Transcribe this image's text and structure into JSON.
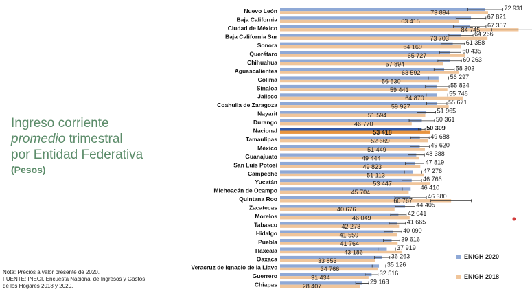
{
  "title": {
    "line1": "Ingreso corriente",
    "line2": "promedio",
    "line2_rest": " trimestral",
    "line3": "por Entidad Federativa",
    "units": "(Pesos)"
  },
  "note": {
    "line1": "Nota: Precios a valor presente de 2020.",
    "line2": "FUENTE: INEGI. Encuesta Nacional de Ingresos y Gastos",
    "line3": "de los Hogares 2018 y 2020."
  },
  "colors": {
    "bar_2020": "#8fa9d6",
    "bar_2018": "#f0c59a",
    "bar_nacional_2020": "#2e56a8",
    "bar_nacional_2018": "#e8953f",
    "title": "#5c8c6a",
    "marker": "#d23a3a"
  },
  "chart_data": {
    "type": "bar",
    "orientation": "horizontal",
    "categories": [
      "Nuevo León",
      "Baja California",
      "Ciudad de México",
      "Baja California Sur",
      "Sonora",
      "Querétaro",
      "Chihuahua",
      "Aguascalientes",
      "Colima",
      "Sinaloa",
      "Jalisco",
      "Coahuila de Zaragoza",
      "Nayarit",
      "Durango",
      "Nacional",
      "Tamaulipas",
      "México",
      "Guanajuato",
      "San Luis Potosí",
      "Campeche",
      "Yucatán",
      "Michoacán de Ocampo",
      "Quintana Roo",
      "Zacatecas",
      "Morelos",
      "Tabasco",
      "Hidalgo",
      "Puebla",
      "Tlaxcala",
      "Oaxaca",
      "Veracruz de Ignacio de la Llave",
      "Guerrero",
      "Chiapas"
    ],
    "series": [
      {
        "name": "ENIGH 2020",
        "values": [
          72931,
          67821,
          67357,
          64266,
          61358,
          60435,
          60263,
          58303,
          56297,
          55834,
          55746,
          55671,
          51965,
          50361,
          50309,
          49688,
          49620,
          48388,
          47819,
          47276,
          46766,
          46410,
          46380,
          44405,
          42041,
          41665,
          40090,
          39616,
          37919,
          36263,
          35126,
          32516,
          29168
        ]
      },
      {
        "name": "ENIGH 2018",
        "values": [
          73894,
          63415,
          84745,
          73703,
          64169,
          65727,
          57894,
          63592,
          56530,
          59441,
          64870,
          59927,
          51594,
          46770,
          53418,
          52669,
          51449,
          49444,
          49823,
          51113,
          53447,
          45704,
          60767,
          40676,
          46049,
          42273,
          41559,
          41764,
          43186,
          33853,
          34766,
          31434,
          28407
        ]
      }
    ],
    "labels_2020": [
      "72 931",
      "67 821",
      "67 357",
      "64 266",
      "61 358",
      "60 435",
      "60 263",
      "58 303",
      "56 297",
      "55 834",
      "55 746",
      "55 671",
      "51 965",
      "50 361",
      "50 309",
      "49 688",
      "49 620",
      "48 388",
      "47 819",
      "47 276",
      "46 766",
      "46 410",
      "46 380",
      "44 405",
      "42 041",
      "41 665",
      "40 090",
      "39 616",
      "37 919",
      "36 263",
      "35 126",
      "32 516",
      "29 168"
    ],
    "labels_2018": [
      "73 894",
      "63 415",
      "84 745",
      "73 703",
      "64 169",
      "65 727",
      "57 894",
      "63 592",
      "56 530",
      "59 441",
      "64 870",
      "59 927",
      "51 594",
      "46 770",
      "53 418",
      "52 669",
      "51 449",
      "49 444",
      "49 823",
      "51 113",
      "53 447",
      "45 704",
      "60 767",
      "40 676",
      "46 049",
      "42 273",
      "41 559",
      "41 764",
      "43 186",
      "33 853",
      "34 766",
      "31 434",
      "28 407"
    ],
    "error_2020": [
      6200,
      5300,
      5800,
      4300,
      4200,
      3800,
      4200,
      3600,
      3600,
      4200,
      3800,
      3600,
      3300,
      4500,
      1200,
      3300,
      3400,
      2900,
      3300,
      3100,
      3500,
      3000,
      5600,
      3500,
      2800,
      2900,
      3100,
      2900,
      3100,
      2700,
      2400,
      2300,
      2300
    ],
    "error_2018": [
      0,
      0,
      9500,
      0,
      0,
      0,
      0,
      0,
      0,
      0,
      0,
      0,
      0,
      0,
      0,
      0,
      0,
      0,
      0,
      0,
      0,
      0,
      7200,
      0,
      0,
      0,
      0,
      0,
      0,
      0,
      0,
      0,
      0
    ],
    "highlight_category": "Nacional",
    "xlim": [
      0,
      90000
    ],
    "legend_position": "right"
  }
}
